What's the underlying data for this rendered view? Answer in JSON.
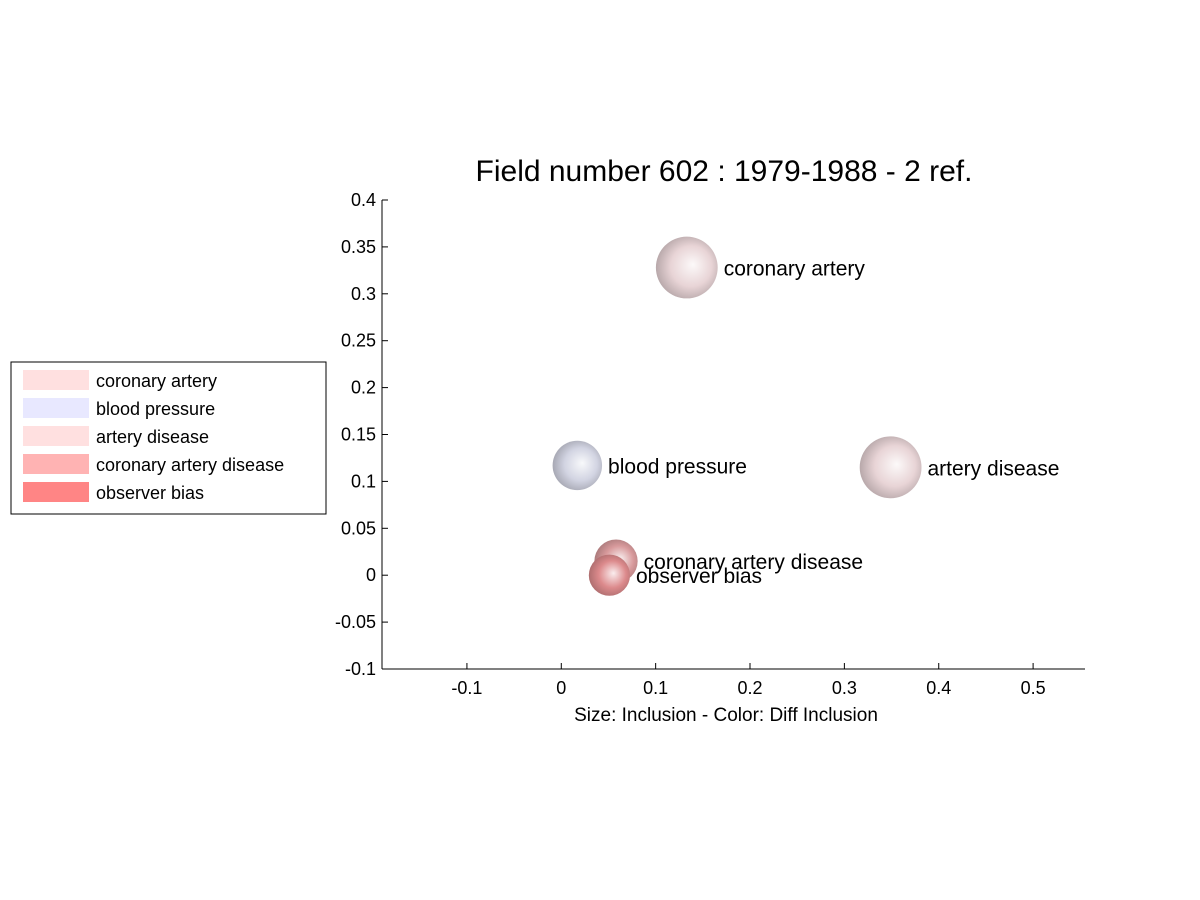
{
  "chart_data": {
    "type": "scatter",
    "title": "Field number 602 : 1979-1988  - 2 ref.",
    "xlabel": "Size: Inclusion - Color: Diff Inclusion",
    "ylabel": "",
    "xlim": [
      -0.19,
      0.555
    ],
    "ylim": [
      -0.1,
      0.4
    ],
    "xticks": [
      "-0.1",
      "0",
      "0.1",
      "0.2",
      "0.3",
      "0.4",
      "0.5"
    ],
    "yticks": [
      "0.4",
      "0.35",
      "0.3",
      "0.25",
      "0.2",
      "0.15",
      "0.1",
      "0.05",
      "0",
      "-0.05",
      "-0.1"
    ],
    "grid": false,
    "legend_position": "left",
    "points": [
      {
        "label": "coronary artery",
        "x": 0.133,
        "y": 0.328,
        "size": 3.0,
        "color": "#e8d4d6"
      },
      {
        "label": "blood pressure",
        "x": 0.017,
        "y": 0.117,
        "size": 2.4,
        "color": "#d2d4e2"
      },
      {
        "label": "artery disease",
        "x": 0.349,
        "y": 0.115,
        "size": 3.0,
        "color": "#e8d4d6"
      },
      {
        "label": "coronary artery disease",
        "x": 0.058,
        "y": 0.015,
        "size": 2.1,
        "color": "#d89a9c"
      },
      {
        "label": "observer bias",
        "x": 0.051,
        "y": 0.0,
        "size": 2.0,
        "color": "#dc8a8c"
      }
    ],
    "legend": [
      {
        "label": "coronary artery",
        "color": "#ffe0e0"
      },
      {
        "label": "blood pressure",
        "color": "#e8e8ff"
      },
      {
        "label": "artery disease",
        "color": "#ffe0e0"
      },
      {
        "label": "coronary artery disease",
        "color": "#ffb3b3"
      },
      {
        "label": "observer bias",
        "color": "#ff8585"
      }
    ]
  }
}
